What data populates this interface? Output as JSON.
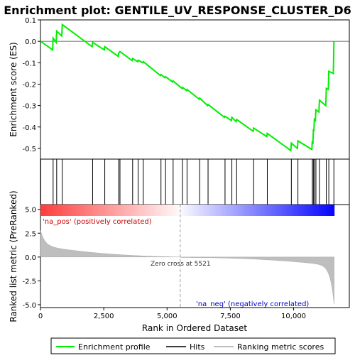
{
  "chart_data": {
    "type": "line",
    "title": "Enrichment plot: GENTILE_UV_RESPONSE_CLUSTER_D6",
    "xlabel": "Rank in Ordered Dataset",
    "ylabel_top": "Enrichment score (ES)",
    "ylabel_bottom": "Ranked list metric (PreRanked)",
    "x_range": [
      0,
      12200
    ],
    "x_ticks": [
      0,
      2500,
      5000,
      7500,
      10000
    ],
    "x_tick_labels": [
      "0",
      "2,500",
      "5,000",
      "7,500",
      "10,000"
    ],
    "es_ylim": [
      -0.55,
      0.1
    ],
    "es_ticks": [
      0.1,
      0.0,
      -0.1,
      -0.2,
      -0.3,
      -0.4,
      -0.5
    ],
    "es_tick_labels": [
      "0.1",
      "0.0",
      "-0.1",
      "-0.2",
      "-0.3",
      "-0.4",
      "-0.5"
    ],
    "metric_ylim": [
      -5.3,
      5.5
    ],
    "metric_ticks": [
      5.0,
      2.5,
      0.0,
      -2.5,
      -5.0
    ],
    "metric_tick_labels": [
      "5.0",
      "2.5",
      "0.0",
      "-2.5",
      "-5.0"
    ],
    "n_genes": 11600,
    "zero_cross": 5521,
    "zero_cross_label": "Zero cross at 5521",
    "pos_label": "'na_pos' (positively correlated)",
    "neg_label": "'na_neg' (negatively correlated)",
    "hits": [
      10,
      500,
      640,
      860,
      2060,
      2540,
      3090,
      3140,
      3640,
      3860,
      4060,
      4760,
      4940,
      5240,
      5610,
      5790,
      6290,
      6620,
      7290,
      7560,
      7750,
      8420,
      8960,
      9910,
      10170,
      10740,
      10780,
      10820,
      10880,
      11020,
      11290,
      11390,
      11590
    ],
    "es_points": [
      [
        0,
        0.0
      ],
      [
        10,
        0.0
      ],
      [
        480,
        -0.04
      ],
      [
        500,
        0.015
      ],
      [
        620,
        -0.005
      ],
      [
        640,
        0.048
      ],
      [
        840,
        0.025
      ],
      [
        860,
        0.078
      ],
      [
        2040,
        -0.025
      ],
      [
        2060,
        -0.005
      ],
      [
        2520,
        -0.04
      ],
      [
        2540,
        -0.025
      ],
      [
        3070,
        -0.07
      ],
      [
        3090,
        -0.055
      ],
      [
        3140,
        -0.048
      ],
      [
        3620,
        -0.09
      ],
      [
        3640,
        -0.08
      ],
      [
        3840,
        -0.095
      ],
      [
        3860,
        -0.088
      ],
      [
        4040,
        -0.1
      ],
      [
        4060,
        -0.095
      ],
      [
        4740,
        -0.16
      ],
      [
        4760,
        -0.155
      ],
      [
        4920,
        -0.17
      ],
      [
        4940,
        -0.165
      ],
      [
        5220,
        -0.19
      ],
      [
        5240,
        -0.185
      ],
      [
        5590,
        -0.22
      ],
      [
        5610,
        -0.215
      ],
      [
        5770,
        -0.23
      ],
      [
        5790,
        -0.225
      ],
      [
        6270,
        -0.27
      ],
      [
        6290,
        -0.265
      ],
      [
        6600,
        -0.3
      ],
      [
        6620,
        -0.295
      ],
      [
        7270,
        -0.355
      ],
      [
        7290,
        -0.35
      ],
      [
        7540,
        -0.37
      ],
      [
        7560,
        -0.355
      ],
      [
        7730,
        -0.375
      ],
      [
        7750,
        -0.365
      ],
      [
        8400,
        -0.42
      ],
      [
        8420,
        -0.405
      ],
      [
        8940,
        -0.445
      ],
      [
        8960,
        -0.43
      ],
      [
        9890,
        -0.51
      ],
      [
        9910,
        -0.475
      ],
      [
        10150,
        -0.5
      ],
      [
        10170,
        -0.465
      ],
      [
        10720,
        -0.505
      ],
      [
        10740,
        -0.465
      ],
      [
        10760,
        -0.48
      ],
      [
        10780,
        -0.41
      ],
      [
        10800,
        -0.42
      ],
      [
        10820,
        -0.365
      ],
      [
        10860,
        -0.37
      ],
      [
        10880,
        -0.32
      ],
      [
        11000,
        -0.33
      ],
      [
        11020,
        -0.275
      ],
      [
        11270,
        -0.3
      ],
      [
        11290,
        -0.22
      ],
      [
        11370,
        -0.225
      ],
      [
        11390,
        -0.14
      ],
      [
        11570,
        -0.15
      ],
      [
        11590,
        0.0
      ]
    ]
  },
  "legend": {
    "items": [
      {
        "label": "Enrichment profile",
        "color": "#00ee00",
        "style": "line"
      },
      {
        "label": "Hits",
        "color": "#000000",
        "style": "line"
      },
      {
        "label": "Ranking metric scores",
        "color": "#bebebe",
        "style": "line"
      }
    ]
  },
  "colors": {
    "es_line": "#00ee00",
    "hit": "#000000",
    "metric_fill": "#bebebe",
    "pos_text": "#cc0000",
    "neg_text": "#0000cc",
    "zero_cross_line": "#9a9a9a"
  }
}
